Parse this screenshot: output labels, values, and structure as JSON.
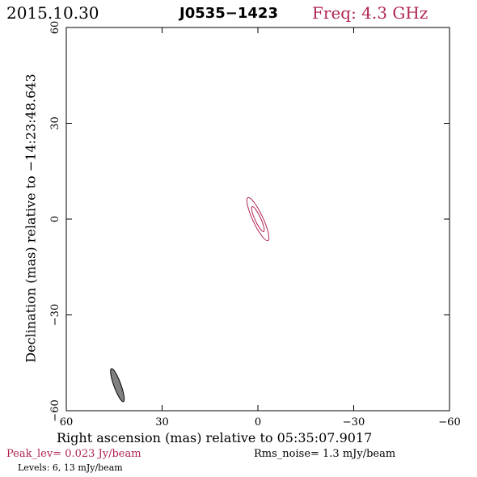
{
  "header": {
    "date": "2015.10.30",
    "source": "J0535−1423",
    "freq": "Freq: 4.3 GHz"
  },
  "chart_data": {
    "type": "contour",
    "xlabel": "Right ascension (mas) relative to 05:35:07.9017",
    "ylabel": "Declination (mas) relative to −14:23:48.643",
    "xlim": [
      60,
      -60
    ],
    "ylim": [
      -60,
      60
    ],
    "x_ticks": [
      60,
      30,
      0,
      -30,
      -60
    ],
    "y_ticks": [
      -60,
      -30,
      0,
      30,
      60
    ],
    "x_tick_labels": [
      "60",
      "30",
      "0",
      "−30",
      "−60"
    ],
    "y_tick_labels": [
      "−60",
      "−30",
      "0",
      "30",
      "60"
    ],
    "contour_color": "#b0254f",
    "contours": [
      {
        "level_mjy": 6,
        "center": [
          0,
          0
        ],
        "semi_major_mas": 7.4,
        "semi_minor_mas": 1.6,
        "pa_deg": 155
      },
      {
        "level_mjy": 13,
        "center": [
          0,
          0
        ],
        "semi_major_mas": 4.3,
        "semi_minor_mas": 0.9,
        "pa_deg": 155
      }
    ],
    "beam": {
      "center": [
        44,
        -52
      ],
      "semi_major_mas": 5.5,
      "semi_minor_mas": 1.1,
      "pa_deg": 160,
      "color": "#808080"
    }
  },
  "footer": {
    "peak": "Peak_lev=  0.023 Jy/beam",
    "rms": "Rms_noise=  1.3 mJy/beam",
    "levels": "Levels:  6,  13 mJy/beam"
  }
}
